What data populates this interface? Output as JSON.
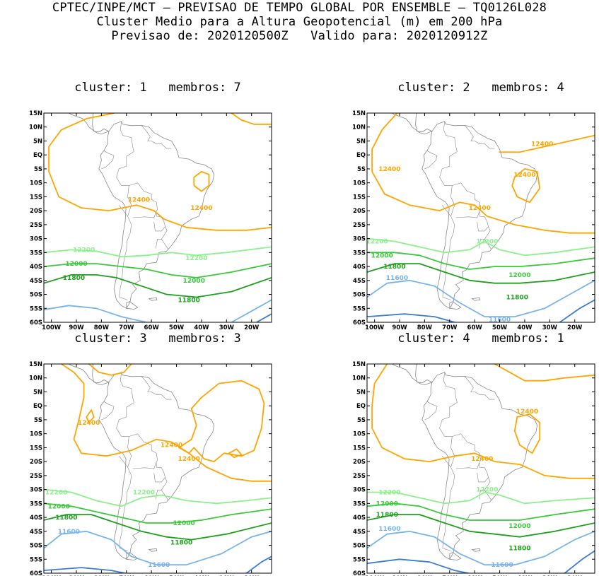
{
  "header": {
    "line1": "CPTEC/INPE/MCT — PREVISAO DE TEMPO GLOBAL POR ENSEMBLE — TQ0126L028",
    "line2": "Cluster Medio para a Altura Geopotencial (m) em 200 hPa",
    "line3": "Previsao de: 2020120500Z   Valido para: 2020120912Z"
  },
  "axes": {
    "lat_ticks": [
      "15N",
      "10N",
      "5N",
      "EQ",
      "5S",
      "10S",
      "15S",
      "20S",
      "25S",
      "30S",
      "35S",
      "40S",
      "45S",
      "50S",
      "55S",
      "60S"
    ],
    "lon_ticks": [
      "100W",
      "90W",
      "80W",
      "70W",
      "60W",
      "50W",
      "40W",
      "30W",
      "20W"
    ]
  },
  "colors": {
    "c12400": "#ffa500",
    "c12200": "#8cf08c",
    "c12000": "#3cc83c",
    "c11800": "#1ea01e",
    "c11600": "#78b4eb",
    "c11400": "#3c7dd2",
    "coast": "#888888"
  },
  "chart_data": [
    {
      "type": "contour-map",
      "title": "cluster: 1   membros: 7",
      "variable": "geopotential height 200 hPa (m)",
      "lon_range": [
        -103,
        -12
      ],
      "lat_range": [
        -60,
        15
      ],
      "contour_labels": [
        {
          "value": "12400",
          "lon": -40,
          "lat": -19
        },
        {
          "value": "12400",
          "lon": -65,
          "lat": -16
        },
        {
          "value": "12200",
          "lon": -87,
          "lat": -34
        },
        {
          "value": "12200",
          "lon": -42,
          "lat": -37
        },
        {
          "value": "12000",
          "lon": -90,
          "lat": -39
        },
        {
          "value": "12000",
          "lon": -43,
          "lat": -45
        },
        {
          "value": "11800",
          "lon": -91,
          "lat": -44
        },
        {
          "value": "11800",
          "lon": -45,
          "lat": -52
        }
      ]
    },
    {
      "type": "contour-map",
      "title": "cluster: 2   membros: 4",
      "variable": "geopotential height 200 hPa (m)",
      "lon_range": [
        -103,
        -12
      ],
      "lat_range": [
        -60,
        15
      ],
      "contour_labels": [
        {
          "value": "12400",
          "lon": -33,
          "lat": 4
        },
        {
          "value": "12400",
          "lon": -94,
          "lat": -5
        },
        {
          "value": "12400",
          "lon": -40,
          "lat": -7
        },
        {
          "value": "12400",
          "lon": -58,
          "lat": -19
        },
        {
          "value": "12200",
          "lon": -99,
          "lat": -31
        },
        {
          "value": "12200",
          "lon": -55,
          "lat": -31
        },
        {
          "value": "12000",
          "lon": -97,
          "lat": -36
        },
        {
          "value": "12000",
          "lon": -42,
          "lat": -43
        },
        {
          "value": "11800",
          "lon": -92,
          "lat": -40
        },
        {
          "value": "11800",
          "lon": -43,
          "lat": -51
        },
        {
          "value": "11600",
          "lon": -91,
          "lat": -44
        },
        {
          "value": "11600",
          "lon": -50,
          "lat": -59
        }
      ]
    },
    {
      "type": "contour-map",
      "title": "cluster: 3   membros: 3",
      "variable": "geopotential height 200 hPa (m)",
      "lon_range": [
        -103,
        -12
      ],
      "lat_range": [
        -60,
        15
      ],
      "contour_labels": [
        {
          "value": "12400",
          "lon": -85,
          "lat": -6
        },
        {
          "value": "12400",
          "lon": -52,
          "lat": -14
        },
        {
          "value": "12400",
          "lon": -45,
          "lat": -19
        },
        {
          "value": "12200",
          "lon": -98,
          "lat": -31
        },
        {
          "value": "12200",
          "lon": -63,
          "lat": -31
        },
        {
          "value": "12000",
          "lon": -97,
          "lat": -36
        },
        {
          "value": "12000",
          "lon": -47,
          "lat": -42
        },
        {
          "value": "11800",
          "lon": -94,
          "lat": -40
        },
        {
          "value": "11800",
          "lon": -48,
          "lat": -49
        },
        {
          "value": "11600",
          "lon": -93,
          "lat": -45
        },
        {
          "value": "11600",
          "lon": -57,
          "lat": -57
        }
      ]
    },
    {
      "type": "contour-map",
      "title": "cluster: 4   membros: 1",
      "variable": "geopotential height 200 hPa (m)",
      "lon_range": [
        -103,
        -12
      ],
      "lat_range": [
        -60,
        15
      ],
      "contour_labels": [
        {
          "value": "12400",
          "lon": -39,
          "lat": -2
        },
        {
          "value": "12400",
          "lon": -57,
          "lat": -19
        },
        {
          "value": "12200",
          "lon": -94,
          "lat": -31
        },
        {
          "value": "12200",
          "lon": -55,
          "lat": -30
        },
        {
          "value": "12000",
          "lon": -95,
          "lat": -35
        },
        {
          "value": "12000",
          "lon": -42,
          "lat": -43
        },
        {
          "value": "11800",
          "lon": -95,
          "lat": -39
        },
        {
          "value": "11800",
          "lon": -42,
          "lat": -51
        },
        {
          "value": "11600",
          "lon": -94,
          "lat": -44
        },
        {
          "value": "11600",
          "lon": -49,
          "lat": -57
        }
      ]
    }
  ]
}
